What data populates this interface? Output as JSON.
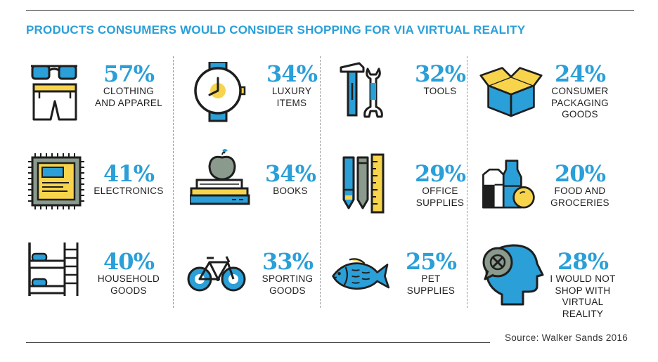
{
  "title": "PRODUCTS CONSUMERS WOULD CONSIDER SHOPPING FOR VIA VIRTUAL REALITY",
  "source": "Source: Walker Sands 2016",
  "colors": {
    "accent": "#2a9fd8",
    "yellow": "#f7d44c",
    "dark": "#1e1e1e",
    "grey": "#8a9a8c"
  },
  "chart_data": {
    "type": "table",
    "title": "PRODUCTS CONSUMERS WOULD CONSIDER SHOPPING FOR VIA VIRTUAL REALITY",
    "unit": "%",
    "categories": [
      "CLOTHING AND APPAREL",
      "LUXURY ITEMS",
      "TOOLS",
      "CONSUMER PACKAGING GOODS",
      "ELECTRONICS",
      "BOOKS",
      "OFFICE SUPPLIES",
      "FOOD AND GROCERIES",
      "HOUSEHOLD GOODS",
      "SPORTING GOODS",
      "PET SUPPLIES",
      "I WOULD NOT SHOP WITH VIRTUAL REALITY"
    ],
    "values": [
      57,
      34,
      32,
      24,
      41,
      34,
      29,
      20,
      40,
      33,
      25,
      28
    ],
    "items": [
      {
        "pct": "57%",
        "label": "CLOTHING\nAND APPAREL",
        "icon": "clothing-icon"
      },
      {
        "pct": "34%",
        "label": "LUXURY\nITEMS",
        "icon": "watch-icon"
      },
      {
        "pct": "32%",
        "label": "TOOLS",
        "icon": "tools-icon"
      },
      {
        "pct": "24%",
        "label": "CONSUMER\nPACKAGING\nGOODS",
        "icon": "box-icon"
      },
      {
        "pct": "41%",
        "label": "ELECTRONICS",
        "icon": "chip-icon"
      },
      {
        "pct": "34%",
        "label": "BOOKS",
        "icon": "books-icon"
      },
      {
        "pct": "29%",
        "label": "OFFICE\nSUPPLIES",
        "icon": "office-supplies-icon"
      },
      {
        "pct": "20%",
        "label": "FOOD AND\nGROCERIES",
        "icon": "groceries-icon"
      },
      {
        "pct": "40%",
        "label": "HOUSEHOLD\nGOODS",
        "icon": "bunk-bed-icon"
      },
      {
        "pct": "33%",
        "label": "SPORTING\nGOODS",
        "icon": "bicycle-icon"
      },
      {
        "pct": "25%",
        "label": "PET\nSUPPLIES",
        "icon": "fish-icon"
      },
      {
        "pct": "28%",
        "label": "I WOULD NOT\nSHOP WITH\nVIRTUAL REALITY",
        "icon": "vr-refusal-icon"
      }
    ]
  }
}
